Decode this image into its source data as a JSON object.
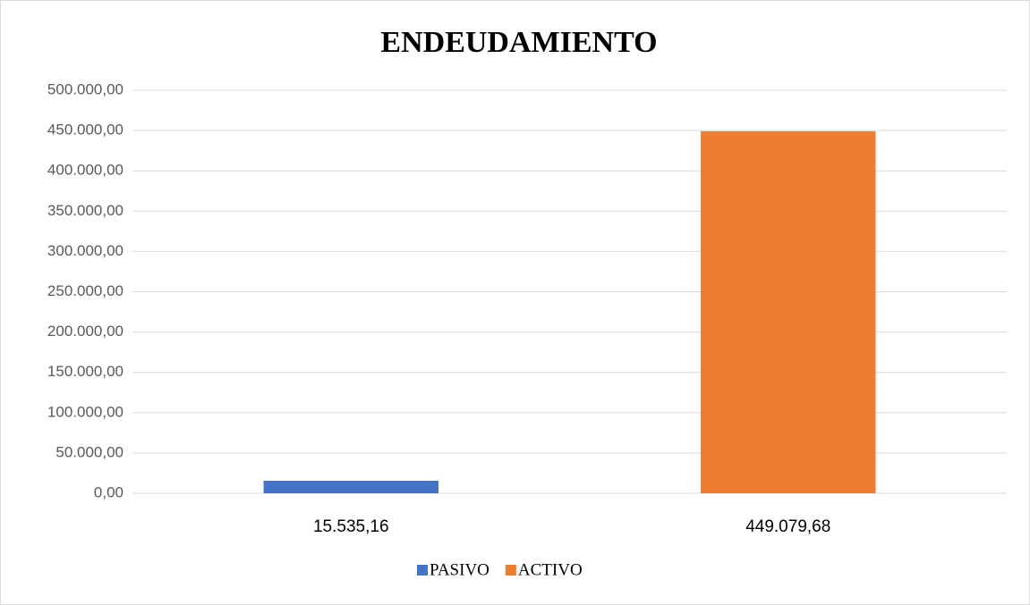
{
  "chart_data": {
    "type": "bar",
    "title": "ENDEUDAMIENTO",
    "categories": [
      "15.535,16",
      "449.079,68"
    ],
    "series": [
      {
        "name": "PASIVO",
        "color": "#4472c4",
        "values": [
          15535.16,
          null
        ]
      },
      {
        "name": "ACTIVO",
        "color": "#ed7d31",
        "values": [
          null,
          449079.68
        ]
      }
    ],
    "ylim": [
      0,
      500000
    ],
    "yticks": [
      {
        "value": 0,
        "label": "0,00"
      },
      {
        "value": 50000,
        "label": "50.000,00"
      },
      {
        "value": 100000,
        "label": "100.000,00"
      },
      {
        "value": 150000,
        "label": "150.000,00"
      },
      {
        "value": 200000,
        "label": "200.000,00"
      },
      {
        "value": 250000,
        "label": "250.000,00"
      },
      {
        "value": 300000,
        "label": "300.000,00"
      },
      {
        "value": 350000,
        "label": "350.000,00"
      },
      {
        "value": 400000,
        "label": "400.000,00"
      },
      {
        "value": 450000,
        "label": "450.000,00"
      },
      {
        "value": 500000,
        "label": "500.000,00"
      }
    ],
    "grid": true,
    "legend": "bottom"
  }
}
